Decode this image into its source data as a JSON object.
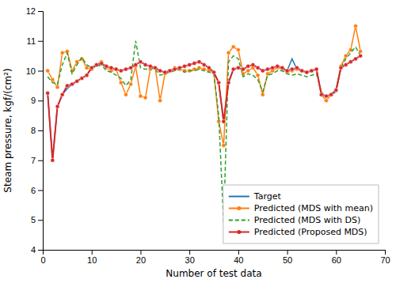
{
  "chart_data": {
    "type": "line",
    "xlabel": "Number of test data",
    "ylabel": "Steam pressure, kgf/(cm²)",
    "x": [
      1,
      2,
      3,
      4,
      5,
      6,
      7,
      8,
      9,
      10,
      11,
      12,
      13,
      14,
      15,
      16,
      17,
      18,
      19,
      20,
      21,
      22,
      23,
      24,
      25,
      26,
      27,
      28,
      29,
      30,
      31,
      32,
      33,
      34,
      35,
      36,
      37,
      38,
      39,
      40,
      41,
      42,
      43,
      44,
      45,
      46,
      47,
      48,
      49,
      50,
      51,
      52,
      53,
      54,
      55,
      56,
      57,
      58,
      59,
      60,
      61,
      62,
      63,
      64,
      65
    ],
    "series": [
      {
        "name": "Target",
        "line_style": "solid",
        "values": [
          9.25,
          7.0,
          8.8,
          9.2,
          9.4,
          9.55,
          9.65,
          9.75,
          9.85,
          10.1,
          10.15,
          10.2,
          10.15,
          10.1,
          10.05,
          10.0,
          10.05,
          10.1,
          10.2,
          10.3,
          10.2,
          10.15,
          10.1,
          10.0,
          9.95,
          10.0,
          10.05,
          10.1,
          10.15,
          10.2,
          10.25,
          10.3,
          10.2,
          10.1,
          9.95,
          9.6,
          8.3,
          9.6,
          10.05,
          10.1,
          10.05,
          10.15,
          10.2,
          10.1,
          10.0,
          10.05,
          10.1,
          10.15,
          10.1,
          10.0,
          10.4,
          10.05,
          10.0,
          9.95,
          10.0,
          10.05,
          9.2,
          9.15,
          9.2,
          9.3,
          10.1,
          10.2,
          10.3,
          10.4,
          10.5
        ]
      },
      {
        "name": "Predicted (MDS with mean)",
        "line_style": "solid",
        "marker": "circle",
        "values": [
          10.0,
          9.7,
          9.45,
          10.6,
          10.65,
          10.0,
          10.3,
          10.4,
          10.1,
          10.05,
          10.2,
          10.3,
          10.1,
          10.0,
          10.05,
          9.6,
          9.2,
          9.55,
          10.15,
          9.15,
          9.1,
          10.05,
          10.1,
          9.0,
          9.9,
          10.0,
          10.1,
          10.05,
          10.0,
          10.0,
          10.05,
          10.1,
          10.05,
          10.0,
          9.95,
          8.3,
          7.5,
          10.6,
          10.8,
          10.7,
          9.9,
          10.0,
          10.1,
          9.85,
          9.2,
          9.9,
          10.0,
          10.1,
          10.05,
          9.95,
          10.0,
          10.05,
          10.0,
          9.95,
          10.0,
          10.05,
          9.2,
          9.0,
          9.2,
          9.35,
          10.15,
          10.5,
          10.7,
          11.5,
          10.65
        ]
      },
      {
        "name": "Predicted (MDS with DS)",
        "line_style": "dashed",
        "values": [
          9.8,
          9.6,
          9.55,
          10.2,
          10.6,
          9.9,
          10.2,
          10.45,
          10.2,
          10.1,
          10.15,
          10.2,
          10.0,
          9.95,
          9.85,
          9.75,
          9.5,
          9.7,
          11.0,
          10.1,
          10.05,
          10.1,
          10.05,
          9.85,
          9.9,
          9.95,
          10.0,
          10.05,
          9.95,
          10.0,
          10.0,
          10.05,
          10.0,
          9.95,
          9.9,
          8.5,
          4.9,
          10.3,
          10.5,
          10.4,
          9.8,
          9.9,
          9.85,
          9.7,
          9.3,
          9.85,
          9.9,
          10.0,
          10.0,
          9.9,
          9.85,
          9.9,
          9.85,
          9.8,
          9.85,
          9.9,
          9.3,
          9.1,
          9.25,
          9.3,
          10.1,
          10.4,
          10.6,
          10.8,
          10.5
        ]
      },
      {
        "name": "Predicted (Proposed MDS)",
        "line_style": "solid",
        "marker": "circle",
        "values": [
          9.25,
          7.0,
          8.8,
          9.2,
          9.5,
          9.55,
          9.65,
          9.75,
          9.85,
          10.1,
          10.2,
          10.25,
          10.15,
          10.1,
          10.05,
          10.0,
          10.05,
          10.1,
          10.2,
          10.3,
          10.2,
          10.15,
          10.1,
          10.0,
          9.95,
          10.0,
          10.05,
          10.1,
          10.15,
          10.2,
          10.25,
          10.3,
          10.2,
          10.1,
          9.95,
          9.6,
          8.3,
          9.6,
          10.05,
          10.1,
          10.05,
          10.15,
          10.2,
          10.1,
          10.0,
          10.05,
          10.1,
          10.15,
          10.1,
          10.0,
          10.05,
          10.1,
          10.0,
          9.95,
          10.0,
          10.05,
          9.2,
          9.15,
          9.2,
          9.35,
          10.1,
          10.2,
          10.3,
          10.4,
          10.5
        ]
      }
    ],
    "xlim": [
      0,
      70
    ],
    "ylim": [
      4,
      12
    ],
    "xticks": [
      0,
      10,
      20,
      30,
      40,
      50,
      60,
      70
    ],
    "yticks": [
      4,
      5,
      6,
      7,
      8,
      9,
      10,
      11,
      12
    ],
    "grid": false,
    "legend": "lower right"
  }
}
